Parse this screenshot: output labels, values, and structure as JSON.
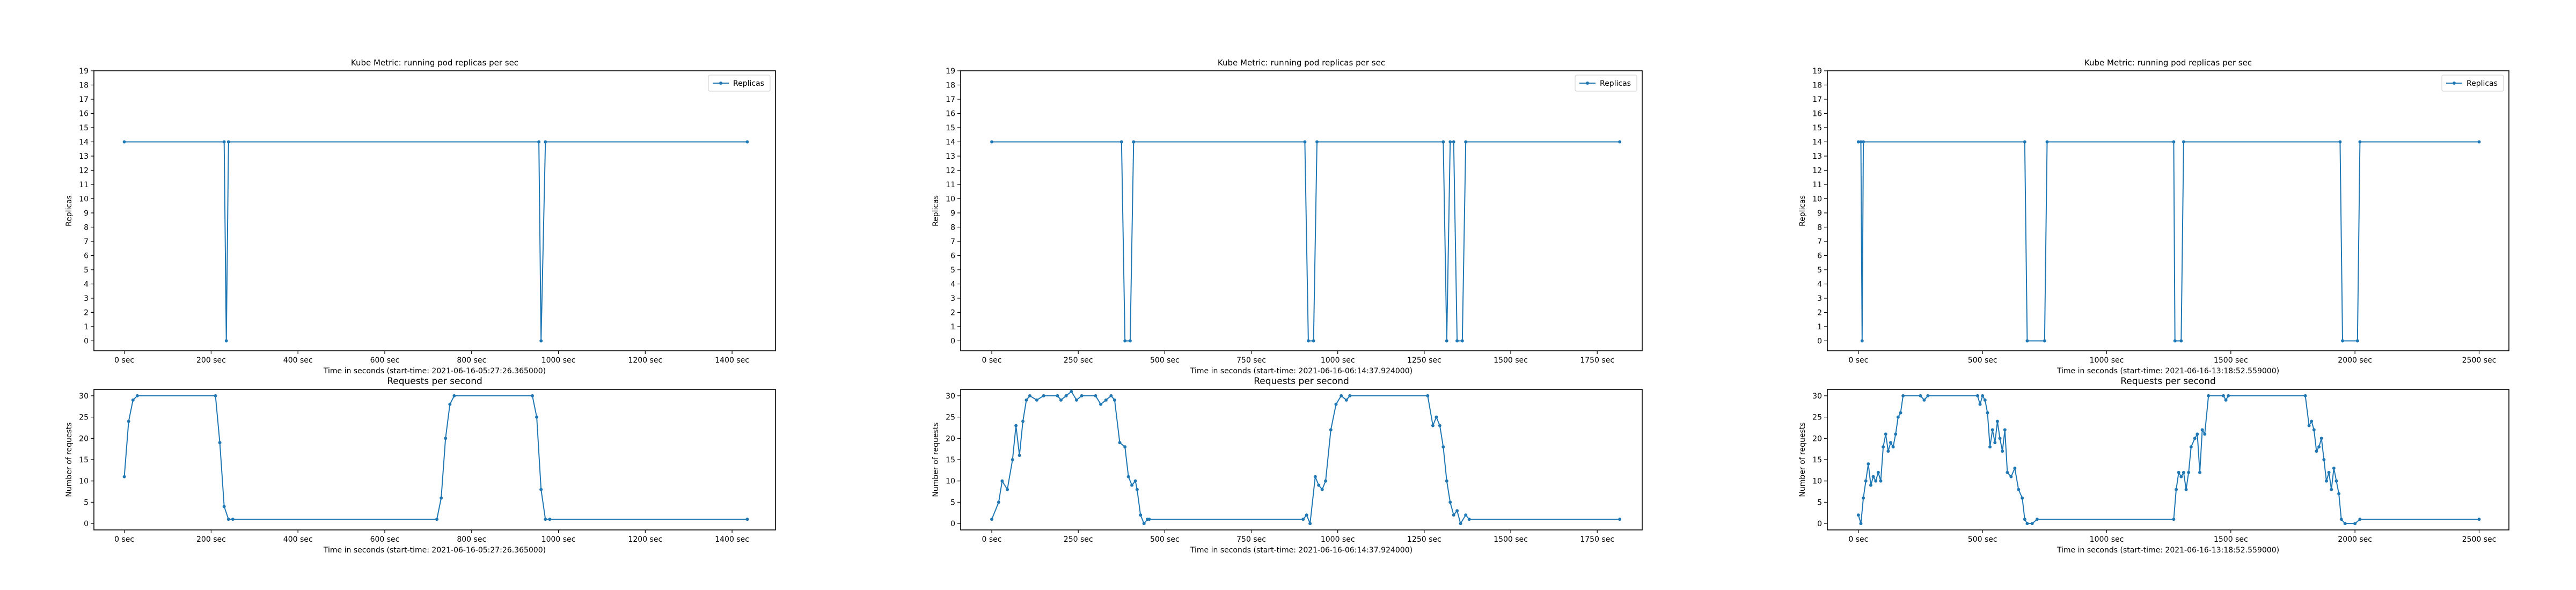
{
  "chart_data": [
    {
      "type": "line",
      "title": "Kube Metric: running pod replicas per sec",
      "xlabel": "Time in seconds (start-time: 2021-06-16-05:27:26.365000)",
      "ylabel": "Replicas",
      "xlim": [
        -70,
        1500
      ],
      "ylim": [
        -0.7,
        19
      ],
      "xticks": [
        0,
        200,
        400,
        600,
        800,
        1000,
        1200,
        1400
      ],
      "xtick_labels": [
        "0 sec",
        "200 sec",
        "400 sec",
        "600 sec",
        "800 sec",
        "1000 sec",
        "1200 sec",
        "1400 sec"
      ],
      "yticks": [
        0,
        1,
        2,
        3,
        4,
        5,
        6,
        7,
        8,
        9,
        10,
        11,
        12,
        13,
        14,
        15,
        16,
        17,
        18,
        19
      ],
      "legend": {
        "position": "top-right",
        "entries": [
          "Replicas"
        ]
      },
      "series": [
        {
          "name": "Replicas",
          "color": "#1f77b4",
          "marker": "dot",
          "points": [
            [
              0,
              14
            ],
            [
              230,
              14
            ],
            [
              235,
              0
            ],
            [
              240,
              14
            ],
            [
              955,
              14
            ],
            [
              960,
              0
            ],
            [
              970,
              14
            ],
            [
              1435,
              14
            ]
          ]
        }
      ]
    },
    {
      "type": "line",
      "title": "Requests per second",
      "xlabel": "Time in seconds (start-time: 2021-06-16-05:27:26.365000)",
      "ylabel": "Number of requests",
      "xlim": [
        -70,
        1500
      ],
      "ylim": [
        -1.5,
        31.5
      ],
      "xticks": [
        0,
        200,
        400,
        600,
        800,
        1000,
        1200,
        1400
      ],
      "xtick_labels": [
        "0 sec",
        "200 sec",
        "400 sec",
        "600 sec",
        "800 sec",
        "1000 sec",
        "1200 sec",
        "1400 sec"
      ],
      "yticks": [
        0,
        5,
        10,
        15,
        20,
        25,
        30
      ],
      "series": [
        {
          "name": "",
          "color": "#1f77b4",
          "marker": "dot",
          "points": [
            [
              0,
              11
            ],
            [
              10,
              24
            ],
            [
              20,
              29
            ],
            [
              30,
              30
            ],
            [
              210,
              30
            ],
            [
              220,
              19
            ],
            [
              230,
              4
            ],
            [
              240,
              1
            ],
            [
              250,
              1
            ],
            [
              720,
              1
            ],
            [
              730,
              6
            ],
            [
              740,
              20
            ],
            [
              750,
              28
            ],
            [
              760,
              30
            ],
            [
              940,
              30
            ],
            [
              950,
              25
            ],
            [
              960,
              8
            ],
            [
              970,
              1
            ],
            [
              980,
              1
            ],
            [
              1435,
              1
            ]
          ]
        }
      ]
    },
    {
      "type": "line",
      "title": "Kube Metric: running pod replicas per sec",
      "xlabel": "Time in seconds (start-time: 2021-06-16-06:14:37.924000)",
      "ylabel": "Replicas",
      "xlim": [
        -90,
        1880
      ],
      "ylim": [
        -0.7,
        19
      ],
      "xticks": [
        0,
        250,
        500,
        750,
        1000,
        1250,
        1500,
        1750
      ],
      "xtick_labels": [
        "0 sec",
        "250 sec",
        "500 sec",
        "750 sec",
        "1000 sec",
        "1250 sec",
        "1500 sec",
        "1750 sec"
      ],
      "yticks": [
        0,
        1,
        2,
        3,
        4,
        5,
        6,
        7,
        8,
        9,
        10,
        11,
        12,
        13,
        14,
        15,
        16,
        17,
        18,
        19
      ],
      "legend": {
        "position": "top-right",
        "entries": [
          "Replicas"
        ]
      },
      "series": [
        {
          "name": "Replicas",
          "color": "#1f77b4",
          "marker": "dot",
          "points": [
            [
              0,
              14
            ],
            [
              375,
              14
            ],
            [
              385,
              0
            ],
            [
              400,
              0
            ],
            [
              410,
              14
            ],
            [
              905,
              14
            ],
            [
              915,
              0
            ],
            [
              930,
              0
            ],
            [
              940,
              14
            ],
            [
              1305,
              14
            ],
            [
              1315,
              0
            ],
            [
              1325,
              14
            ],
            [
              1335,
              14
            ],
            [
              1345,
              0
            ],
            [
              1360,
              0
            ],
            [
              1370,
              14
            ],
            [
              1815,
              14
            ]
          ]
        }
      ]
    },
    {
      "type": "line",
      "title": "Requests per second",
      "xlabel": "Time in seconds (start-time: 2021-06-16-06:14:37.924000)",
      "ylabel": "Number of requests",
      "xlim": [
        -90,
        1880
      ],
      "ylim": [
        -1.5,
        31.5
      ],
      "xticks": [
        0,
        250,
        500,
        750,
        1000,
        1250,
        1500,
        1750
      ],
      "xtick_labels": [
        "0 sec",
        "250 sec",
        "500 sec",
        "750 sec",
        "1000 sec",
        "1250 sec",
        "1500 sec",
        "1750 sec"
      ],
      "yticks": [
        0,
        5,
        10,
        15,
        20,
        25,
        30
      ],
      "series": [
        {
          "name": "",
          "color": "#1f77b4",
          "marker": "dot",
          "points": [
            [
              0,
              1
            ],
            [
              20,
              5
            ],
            [
              30,
              10
            ],
            [
              45,
              8
            ],
            [
              60,
              15
            ],
            [
              70,
              23
            ],
            [
              80,
              16
            ],
            [
              90,
              24
            ],
            [
              100,
              29
            ],
            [
              110,
              30
            ],
            [
              130,
              29
            ],
            [
              150,
              30
            ],
            [
              190,
              30
            ],
            [
              200,
              29
            ],
            [
              215,
              30
            ],
            [
              230,
              31
            ],
            [
              245,
              29
            ],
            [
              260,
              30
            ],
            [
              300,
              30
            ],
            [
              315,
              28
            ],
            [
              330,
              29
            ],
            [
              345,
              30
            ],
            [
              355,
              29
            ],
            [
              370,
              19
            ],
            [
              385,
              18
            ],
            [
              395,
              11
            ],
            [
              405,
              9
            ],
            [
              415,
              10
            ],
            [
              420,
              8
            ],
            [
              430,
              2
            ],
            [
              440,
              0
            ],
            [
              450,
              1
            ],
            [
              455,
              1
            ],
            [
              900,
              1
            ],
            [
              910,
              2
            ],
            [
              920,
              0
            ],
            [
              935,
              11
            ],
            [
              945,
              9
            ],
            [
              955,
              8
            ],
            [
              965,
              10
            ],
            [
              980,
              22
            ],
            [
              995,
              28
            ],
            [
              1010,
              30
            ],
            [
              1025,
              29
            ],
            [
              1035,
              30
            ],
            [
              1260,
              30
            ],
            [
              1275,
              23
            ],
            [
              1285,
              25
            ],
            [
              1295,
              23
            ],
            [
              1305,
              18
            ],
            [
              1315,
              10
            ],
            [
              1325,
              5
            ],
            [
              1335,
              2
            ],
            [
              1345,
              3
            ],
            [
              1355,
              0
            ],
            [
              1370,
              2
            ],
            [
              1380,
              1
            ],
            [
              1815,
              1
            ]
          ]
        }
      ]
    },
    {
      "type": "line",
      "title": "Kube Metric: running pod replicas per sec",
      "xlabel": "Time in seconds (start-time: 2021-06-16-13:18:52.559000)",
      "ylabel": "Replicas",
      "xlim": [
        -125,
        2620
      ],
      "ylim": [
        -0.7,
        19
      ],
      "xticks": [
        0,
        500,
        1000,
        1500,
        2000,
        2500
      ],
      "xtick_labels": [
        "0 sec",
        "500 sec",
        "1000 sec",
        "1500 sec",
        "2000 sec",
        "2500 sec"
      ],
      "yticks": [
        0,
        1,
        2,
        3,
        4,
        5,
        6,
        7,
        8,
        9,
        10,
        11,
        12,
        13,
        14,
        15,
        16,
        17,
        18,
        19
      ],
      "legend": {
        "position": "top-right",
        "entries": [
          "Replicas"
        ]
      },
      "series": [
        {
          "name": "Replicas",
          "color": "#1f77b4",
          "marker": "dot",
          "points": [
            [
              0,
              14
            ],
            [
              10,
              14
            ],
            [
              15,
              0
            ],
            [
              20,
              14
            ],
            [
              670,
              14
            ],
            [
              680,
              0
            ],
            [
              750,
              0
            ],
            [
              760,
              14
            ],
            [
              1270,
              14
            ],
            [
              1275,
              0
            ],
            [
              1300,
              0
            ],
            [
              1310,
              14
            ],
            [
              1940,
              14
            ],
            [
              1950,
              0
            ],
            [
              2010,
              0
            ],
            [
              2020,
              14
            ],
            [
              2500,
              14
            ]
          ]
        }
      ]
    },
    {
      "type": "line",
      "title": "Requests per second",
      "xlabel": "Time in seconds (start-time: 2021-06-16-13:18:52.559000)",
      "ylabel": "Number of requests",
      "xlim": [
        -125,
        2620
      ],
      "ylim": [
        -1.5,
        31.5
      ],
      "xticks": [
        0,
        500,
        1000,
        1500,
        2000,
        2500
      ],
      "xtick_labels": [
        "0 sec",
        "500 sec",
        "1000 sec",
        "1500 sec",
        "2000 sec",
        "2500 sec"
      ],
      "yticks": [
        0,
        5,
        10,
        15,
        20,
        25,
        30
      ],
      "series": [
        {
          "name": "",
          "color": "#1f77b4",
          "marker": "dot",
          "points": [
            [
              0,
              2
            ],
            [
              10,
              0
            ],
            [
              20,
              6
            ],
            [
              30,
              10
            ],
            [
              40,
              14
            ],
            [
              50,
              9
            ],
            [
              60,
              11
            ],
            [
              70,
              10
            ],
            [
              80,
              12
            ],
            [
              90,
              10
            ],
            [
              100,
              18
            ],
            [
              110,
              21
            ],
            [
              120,
              17
            ],
            [
              130,
              19
            ],
            [
              140,
              18
            ],
            [
              150,
              21
            ],
            [
              160,
              25
            ],
            [
              170,
              26
            ],
            [
              180,
              30
            ],
            [
              250,
              30
            ],
            [
              265,
              29
            ],
            [
              280,
              30
            ],
            [
              480,
              30
            ],
            [
              490,
              28
            ],
            [
              500,
              30
            ],
            [
              510,
              29
            ],
            [
              520,
              26
            ],
            [
              530,
              18
            ],
            [
              540,
              22
            ],
            [
              550,
              19
            ],
            [
              560,
              24
            ],
            [
              570,
              20
            ],
            [
              580,
              17
            ],
            [
              590,
              22
            ],
            [
              600,
              12
            ],
            [
              615,
              11
            ],
            [
              630,
              13
            ],
            [
              645,
              8
            ],
            [
              660,
              6
            ],
            [
              670,
              1
            ],
            [
              680,
              0
            ],
            [
              700,
              0
            ],
            [
              720,
              1
            ],
            [
              1270,
              1
            ],
            [
              1280,
              8
            ],
            [
              1290,
              12
            ],
            [
              1300,
              11
            ],
            [
              1310,
              12
            ],
            [
              1320,
              8
            ],
            [
              1330,
              12
            ],
            [
              1340,
              18
            ],
            [
              1355,
              20
            ],
            [
              1365,
              21
            ],
            [
              1375,
              12
            ],
            [
              1385,
              22
            ],
            [
              1395,
              21
            ],
            [
              1410,
              30
            ],
            [
              1470,
              30
            ],
            [
              1480,
              29
            ],
            [
              1490,
              30
            ],
            [
              1800,
              30
            ],
            [
              1815,
              23
            ],
            [
              1825,
              24
            ],
            [
              1835,
              22
            ],
            [
              1845,
              17
            ],
            [
              1855,
              18
            ],
            [
              1865,
              20
            ],
            [
              1875,
              15
            ],
            [
              1885,
              10
            ],
            [
              1895,
              12
            ],
            [
              1905,
              8
            ],
            [
              1915,
              13
            ],
            [
              1925,
              10
            ],
            [
              1935,
              7
            ],
            [
              1945,
              1
            ],
            [
              1960,
              0
            ],
            [
              2000,
              0
            ],
            [
              2020,
              1
            ],
            [
              2500,
              1
            ]
          ]
        }
      ]
    }
  ]
}
